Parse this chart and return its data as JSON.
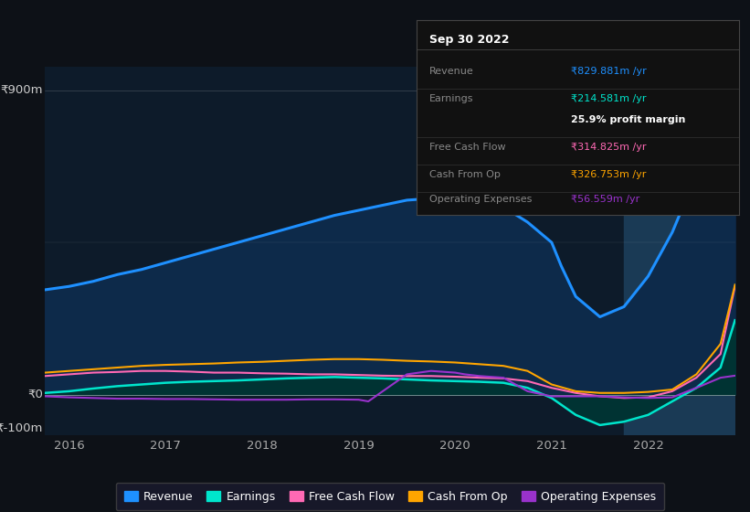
{
  "bg_color": "#0d1117",
  "plot_bg_color": "#0d1b2a",
  "ylim": [
    -120,
    970
  ],
  "xlim": [
    2015.75,
    2022.9
  ],
  "highlight_x_start": 2021.75,
  "highlight_x_end": 2022.9,
  "series": {
    "revenue": {
      "color": "#1e90ff",
      "fill_color": "#0d2a4a",
      "label": "Revenue",
      "x": [
        2015.75,
        2016.0,
        2016.25,
        2016.5,
        2016.75,
        2017.0,
        2017.25,
        2017.5,
        2017.75,
        2018.0,
        2018.25,
        2018.5,
        2018.75,
        2019.0,
        2019.25,
        2019.5,
        2019.75,
        2020.0,
        2020.1,
        2020.25,
        2020.5,
        2020.75,
        2021.0,
        2021.1,
        2021.25,
        2021.5,
        2021.75,
        2022.0,
        2022.25,
        2022.5,
        2022.75,
        2022.9
      ],
      "y": [
        310,
        320,
        335,
        355,
        370,
        390,
        410,
        430,
        450,
        470,
        490,
        510,
        530,
        545,
        560,
        575,
        580,
        590,
        595,
        580,
        555,
        510,
        450,
        380,
        290,
        230,
        260,
        350,
        480,
        650,
        820,
        855
      ]
    },
    "earnings": {
      "color": "#00e5cc",
      "fill_color": "#003333",
      "label": "Earnings",
      "x": [
        2015.75,
        2016.0,
        2016.25,
        2016.5,
        2016.75,
        2017.0,
        2017.25,
        2017.5,
        2017.75,
        2018.0,
        2018.25,
        2018.5,
        2018.75,
        2019.0,
        2019.25,
        2019.5,
        2019.75,
        2020.0,
        2020.25,
        2020.5,
        2020.75,
        2021.0,
        2021.1,
        2021.25,
        2021.5,
        2021.75,
        2022.0,
        2022.25,
        2022.5,
        2022.75,
        2022.9
      ],
      "y": [
        5,
        10,
        18,
        25,
        30,
        35,
        38,
        40,
        42,
        45,
        48,
        50,
        52,
        50,
        48,
        45,
        42,
        40,
        38,
        35,
        20,
        -10,
        -30,
        -60,
        -90,
        -80,
        -60,
        -20,
        20,
        80,
        220
      ]
    },
    "free_cash_flow": {
      "color": "#ff69b4",
      "label": "Free Cash Flow",
      "x": [
        2015.75,
        2016.0,
        2016.25,
        2016.5,
        2016.75,
        2017.0,
        2017.25,
        2017.5,
        2017.75,
        2018.0,
        2018.25,
        2018.5,
        2018.75,
        2019.0,
        2019.25,
        2019.5,
        2019.75,
        2020.0,
        2020.25,
        2020.5,
        2020.75,
        2021.0,
        2021.25,
        2021.5,
        2021.75,
        2022.0,
        2022.25,
        2022.5,
        2022.75,
        2022.9
      ],
      "y": [
        55,
        60,
        65,
        67,
        70,
        70,
        68,
        65,
        65,
        63,
        62,
        60,
        60,
        58,
        56,
        55,
        55,
        53,
        50,
        48,
        40,
        20,
        5,
        -5,
        -10,
        -8,
        10,
        50,
        120,
        320
      ]
    },
    "cash_from_op": {
      "color": "#ffa500",
      "label": "Cash From Op",
      "x": [
        2015.75,
        2016.0,
        2016.25,
        2016.5,
        2016.75,
        2017.0,
        2017.25,
        2017.5,
        2017.75,
        2018.0,
        2018.25,
        2018.5,
        2018.75,
        2019.0,
        2019.25,
        2019.5,
        2019.75,
        2020.0,
        2020.25,
        2020.5,
        2020.75,
        2021.0,
        2021.25,
        2021.5,
        2021.75,
        2022.0,
        2022.25,
        2022.5,
        2022.75,
        2022.9
      ],
      "y": [
        65,
        70,
        75,
        80,
        85,
        88,
        90,
        92,
        95,
        97,
        100,
        103,
        105,
        105,
        103,
        100,
        98,
        95,
        90,
        85,
        70,
        30,
        10,
        5,
        5,
        8,
        15,
        60,
        150,
        325
      ]
    },
    "operating_expenses": {
      "color": "#9932cc",
      "label": "Operating Expenses",
      "x": [
        2015.75,
        2016.0,
        2016.25,
        2016.5,
        2016.75,
        2017.0,
        2017.25,
        2017.5,
        2017.75,
        2018.0,
        2018.25,
        2018.5,
        2018.75,
        2019.0,
        2019.1,
        2019.25,
        2019.5,
        2019.75,
        2020.0,
        2020.1,
        2020.25,
        2020.5,
        2020.75,
        2021.0,
        2021.1,
        2021.25,
        2021.5,
        2021.75,
        2022.0,
        2022.25,
        2022.5,
        2022.75,
        2022.9
      ],
      "y": [
        -5,
        -8,
        -10,
        -12,
        -12,
        -13,
        -13,
        -14,
        -15,
        -15,
        -15,
        -14,
        -14,
        -15,
        -20,
        10,
        60,
        70,
        65,
        60,
        55,
        50,
        10,
        -5,
        -5,
        -5,
        -5,
        -8,
        -10,
        -8,
        20,
        50,
        56
      ]
    }
  },
  "legend": [
    {
      "label": "Revenue",
      "color": "#1e90ff"
    },
    {
      "label": "Earnings",
      "color": "#00e5cc"
    },
    {
      "label": "Free Cash Flow",
      "color": "#ff69b4"
    },
    {
      "label": "Cash From Op",
      "color": "#ffa500"
    },
    {
      "label": "Operating Expenses",
      "color": "#9932cc"
    }
  ],
  "tooltip": {
    "date": "Sep 30 2022",
    "rows": [
      {
        "label": "Revenue",
        "value": "₹829.881m /yr",
        "label_color": "#888888",
        "value_color": "#1e90ff"
      },
      {
        "label": "Earnings",
        "value": "₹214.581m /yr",
        "label_color": "#888888",
        "value_color": "#00e5cc"
      },
      {
        "label": "",
        "value": "25.9% profit margin",
        "label_color": "#888888",
        "value_color": "#ffffff",
        "bold": true
      },
      {
        "label": "Free Cash Flow",
        "value": "₹314.825m /yr",
        "label_color": "#888888",
        "value_color": "#ff69b4"
      },
      {
        "label": "Cash From Op",
        "value": "₹326.753m /yr",
        "label_color": "#888888",
        "value_color": "#ffa500"
      },
      {
        "label": "Operating Expenses",
        "value": "₹56.559m /yr",
        "label_color": "#888888",
        "value_color": "#9932cc"
      }
    ]
  },
  "xticks": [
    2016,
    2017,
    2018,
    2019,
    2020,
    2021,
    2022
  ],
  "ylabel_neg": "₹-100m",
  "ylabel_zero": "₹0",
  "ylabel_top": "₹900m"
}
